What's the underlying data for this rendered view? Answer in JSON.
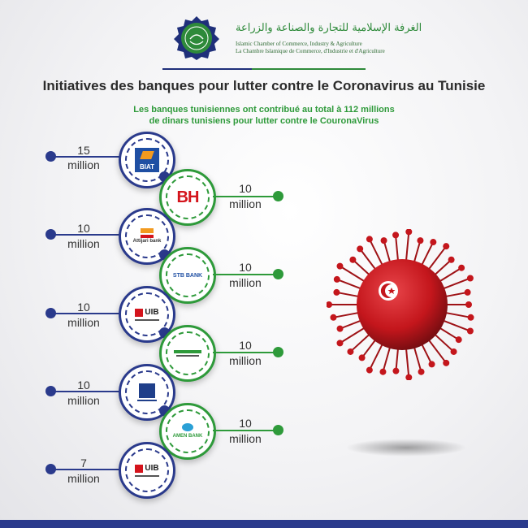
{
  "header": {
    "org_arabic": "الغرفة الإسلامية للتجارة والصناعة والزراعة",
    "org_english": "Islamic Chamber of Commerce, Industry & Agriculture",
    "org_french": "La Chambre Islamique de Commerce, d'Industrie et d'Agriculture"
  },
  "title": "Initiatives des banques pour lutter contre le Coronavirus au Tunisie",
  "subtitle_line1": "Les banques tunisiennes ont contribué au total à 112 millions",
  "subtitle_line2": "de dinars tunisiens pour lutter contre le CouronaVirus",
  "banks": [
    {
      "logo_text": "BIAT",
      "amount": "15",
      "unit": "million"
    },
    {
      "logo_text": "BH",
      "amount": "10",
      "unit": "million"
    },
    {
      "logo_text": "Attijari bank",
      "amount": "10",
      "unit": "million"
    },
    {
      "logo_text": "STB BANK",
      "amount": "10",
      "unit": "million"
    },
    {
      "logo_text": "UIB",
      "amount": "10",
      "unit": "million"
    },
    {
      "logo_text": "",
      "amount": "10",
      "unit": "million"
    },
    {
      "logo_text": "",
      "amount": "10",
      "unit": "million"
    },
    {
      "logo_text": "AMEN BANK",
      "amount": "10",
      "unit": "million"
    },
    {
      "logo_text": "UIB",
      "amount": "7",
      "unit": "million"
    }
  ],
  "colors": {
    "blue": "#2a3a8c",
    "green": "#2e9a3a",
    "virus_red": "#c4161c"
  }
}
